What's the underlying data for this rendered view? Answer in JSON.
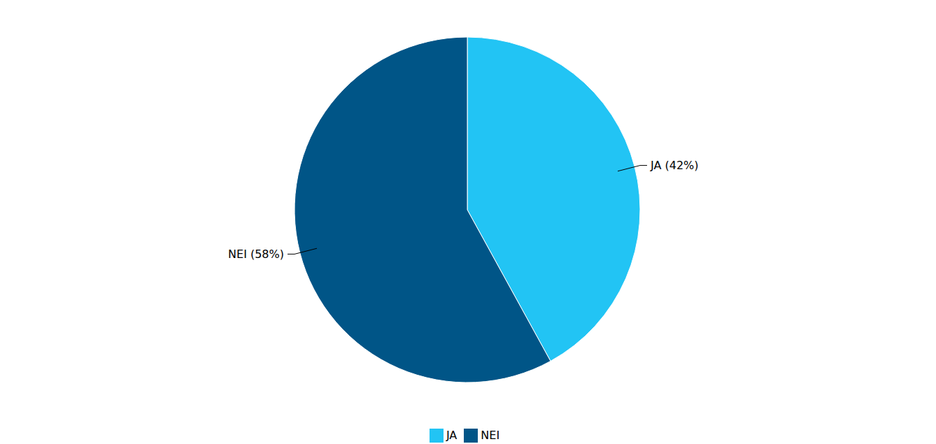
{
  "chart_data": {
    "type": "pie",
    "categories": [
      "JA",
      "NEI"
    ],
    "values": [
      42,
      58
    ],
    "value_labels": [
      "JA (42%)",
      "NEI (58%)"
    ],
    "colors": [
      "#22c4f4",
      "#005587"
    ],
    "data_labels": true,
    "legend": "bottom"
  }
}
